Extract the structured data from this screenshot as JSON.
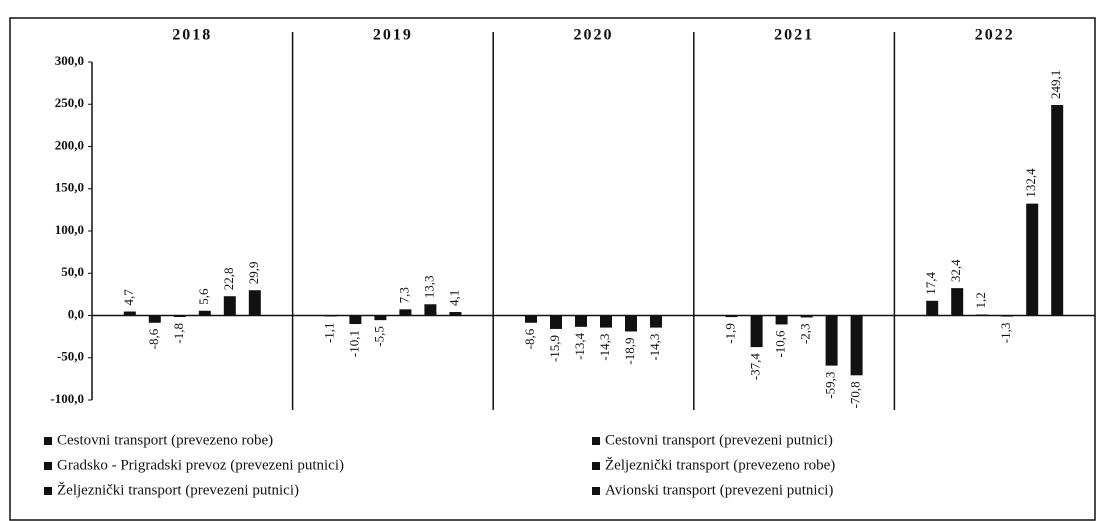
{
  "chart_data": {
    "type": "bar",
    "categories": [
      "2018",
      "2019",
      "2020",
      "2021",
      "2022"
    ],
    "ylim": [
      -100,
      300
    ],
    "yticks": [
      {
        "value": 300,
        "label": "300,0"
      },
      {
        "value": 250,
        "label": "250,0"
      },
      {
        "value": 200,
        "label": "200,0"
      },
      {
        "value": 150,
        "label": "150,0"
      },
      {
        "value": 100,
        "label": "100,0"
      },
      {
        "value": 50,
        "label": "50,0"
      },
      {
        "value": 0,
        "label": "0,0"
      },
      {
        "value": -50,
        "label": "-50,0"
      },
      {
        "value": -100,
        "label": "-100,0"
      }
    ],
    "series": [
      {
        "name": "Cestovni transport (prevezeno robe)",
        "color": "#111111",
        "values": [
          4.7,
          -1.1,
          -8.6,
          -1.9,
          17.4
        ],
        "value_labels": [
          "4,7",
          "-1,1",
          "-8,6",
          "-1,9",
          "17,4"
        ]
      },
      {
        "name": "Cestovni transport (prevezeni putnici)",
        "color": "#111111",
        "values": [
          -8.6,
          -10.1,
          -15.9,
          -37.4,
          32.4
        ],
        "value_labels": [
          "-8,6",
          "-10,1",
          "-15,9",
          "-37,4",
          "32,4"
        ]
      },
      {
        "name": "Gradsko - Prigradski prevoz (prevezeni putnici)",
        "color": "#111111",
        "values": [
          -1.8,
          -5.5,
          -13.4,
          -10.6,
          1.2
        ],
        "value_labels": [
          "-1,8",
          "-5,5",
          "-13,4",
          "-10,6",
          "1,2"
        ]
      },
      {
        "name": "Željeznički transport (prevezeno robe)",
        "color": "#111111",
        "values": [
          5.6,
          7.3,
          -14.3,
          -2.3,
          -1.3
        ],
        "value_labels": [
          "5,6",
          "7,3",
          "-14,3",
          "-2,3",
          "-1,3"
        ]
      },
      {
        "name": "Željeznički transport (prevezeni putnici)",
        "color": "#111111",
        "values": [
          22.8,
          13.3,
          -18.9,
          -59.3,
          132.4
        ],
        "value_labels": [
          "22,8",
          "13,3",
          "-18,9",
          "-59,3",
          "132,4"
        ]
      },
      {
        "name": "Avionski transport (prevezeni putnici)",
        "color": "#111111",
        "values": [
          29.9,
          4.1,
          -14.3,
          -70.8,
          249.1
        ],
        "value_labels": [
          "29,9",
          "4,1",
          "-14,3",
          "-70,8",
          "249,1"
        ]
      }
    ]
  }
}
